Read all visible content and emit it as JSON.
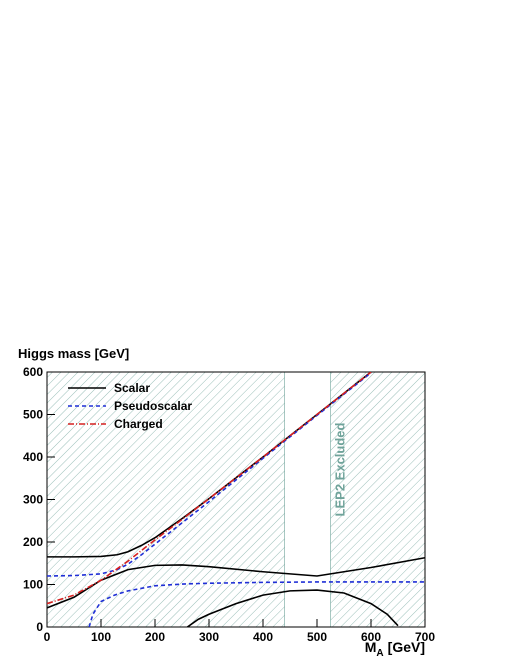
{
  "chart_data": {
    "type": "line",
    "y_label": "Higgs mass [GeV]",
    "x_label": [
      "M",
      "A",
      "[GeV]"
    ],
    "xlim": [
      0,
      700
    ],
    "ylim": [
      0,
      600
    ],
    "xticks": [
      0,
      100,
      200,
      300,
      400,
      500,
      600,
      700
    ],
    "yticks": [
      0,
      100,
      200,
      300,
      400,
      500,
      600
    ],
    "excluded_x": [
      [
        0,
        440
      ],
      [
        525,
        700
      ]
    ],
    "excluded_color": "#6fa39a",
    "annotation": "LEP2 Excluded",
    "series": [
      {
        "name": "Scalar",
        "color": "#000000",
        "dash": "none",
        "x": [
          0,
          50,
          100,
          130,
          150,
          175,
          200,
          250,
          300,
          400,
          500,
          600,
          null,
          0,
          50,
          100,
          150,
          200,
          250,
          300,
          400,
          500,
          600,
          700,
          null,
          260,
          280,
          300,
          350,
          400,
          450,
          500,
          550,
          600,
          630,
          650
        ],
        "values": [
          165,
          165,
          166,
          170,
          177,
          192,
          210,
          255,
          302,
          400,
          500,
          600,
          null,
          45,
          70,
          110,
          135,
          145,
          146,
          142,
          130,
          120,
          140,
          163,
          null,
          0,
          18,
          30,
          55,
          75,
          85,
          87,
          80,
          55,
          30,
          3
        ]
      },
      {
        "name": "Pseudoscalar",
        "color": "#1f2fd6",
        "dash": "4 3",
        "x": [
          0,
          50,
          100,
          130,
          150,
          175,
          200,
          250,
          300,
          400,
          500,
          600,
          null,
          78,
          85,
          100,
          125,
          150,
          200,
          250,
          300,
          400,
          500,
          600,
          700
        ],
        "values": [
          120,
          121,
          125,
          135,
          148,
          170,
          195,
          245,
          295,
          397,
          498,
          598,
          null,
          0,
          30,
          60,
          75,
          85,
          97,
          101,
          103,
          105,
          106,
          106,
          106
        ]
      },
      {
        "name": "Charged",
        "color": "#d62020",
        "dash": "6 2 1 2",
        "x": [
          0,
          50,
          100,
          150,
          200,
          250,
          300,
          400,
          500,
          600
        ],
        "values": [
          55,
          75,
          110,
          155,
          205,
          253,
          302,
          400,
          500,
          600
        ]
      }
    ]
  }
}
